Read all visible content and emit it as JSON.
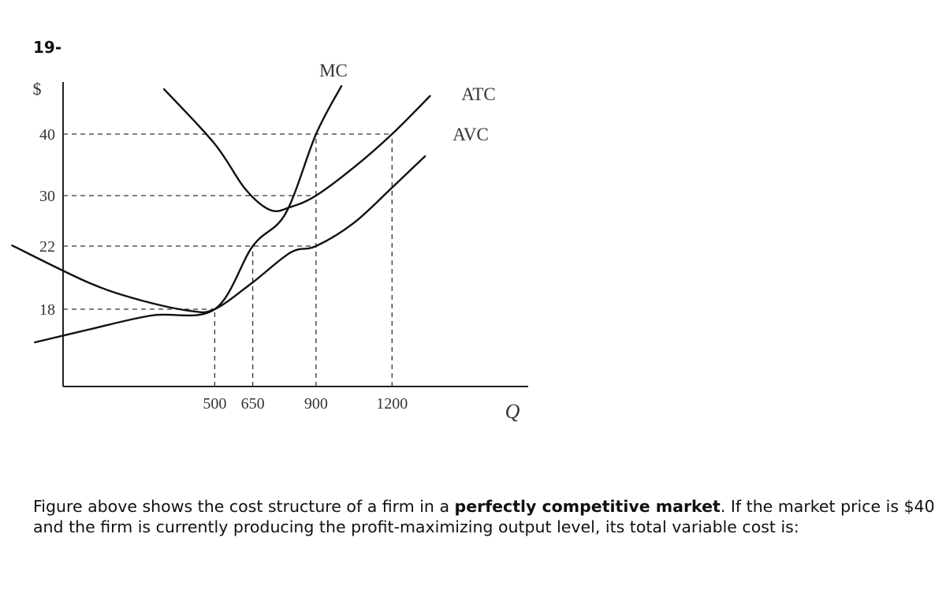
{
  "question": {
    "number": "19-",
    "text_before": "Figure above shows the cost structure of a firm in a ",
    "text_bold": "perfectly competitive market",
    "text_after": ". If the market price is $40 and the firm is currently producing the profit-maximizing output level, its total variable cost is:"
  },
  "chart_data": {
    "type": "line",
    "title": "",
    "ylabel": "$",
    "xlabel": "Q",
    "x_ticks": [
      500,
      650,
      900,
      1200
    ],
    "y_ticks": [
      18,
      22,
      30,
      40
    ],
    "xlim": [
      0,
      1450
    ],
    "ylim": [
      12,
      44
    ],
    "grid": false,
    "series": [
      {
        "name": "MC",
        "points": [
          [
            -210,
            15.9
          ],
          [
            0,
            16.7
          ],
          [
            250,
            17.6
          ],
          [
            500,
            18
          ],
          [
            650,
            22
          ],
          [
            780,
            27.2
          ],
          [
            900,
            40
          ],
          [
            1000,
            47.8
          ]
        ]
      },
      {
        "name": "ATC",
        "points": [
          [
            300,
            47.3
          ],
          [
            500,
            38.4
          ],
          [
            620,
            31.1
          ],
          [
            720,
            27.7
          ],
          [
            800,
            28.2
          ],
          [
            900,
            30
          ],
          [
            1050,
            34.6
          ],
          [
            1200,
            40
          ],
          [
            1350,
            46.2
          ]
        ]
      },
      {
        "name": "AVC",
        "points": [
          [
            -300,
            22.1
          ],
          [
            0,
            19.7
          ],
          [
            200,
            18.6
          ],
          [
            400,
            17.9
          ],
          [
            500,
            18
          ],
          [
            650,
            19.7
          ],
          [
            800,
            21.6
          ],
          [
            900,
            22
          ],
          [
            1050,
            25.7
          ],
          [
            1200,
            31.3
          ],
          [
            1330,
            36.4
          ]
        ]
      }
    ],
    "guides": [
      {
        "y": 40,
        "x_to": 1200
      },
      {
        "y": 30,
        "x_to": 900
      },
      {
        "y": 22,
        "x_to": 900
      },
      {
        "y": 18,
        "x_to": 500
      },
      {
        "x": 500,
        "y_to": 18
      },
      {
        "x": 650,
        "y_to": 22
      },
      {
        "x": 900,
        "y_to": 40
      },
      {
        "x": 1200,
        "y_to": 40
      }
    ]
  }
}
